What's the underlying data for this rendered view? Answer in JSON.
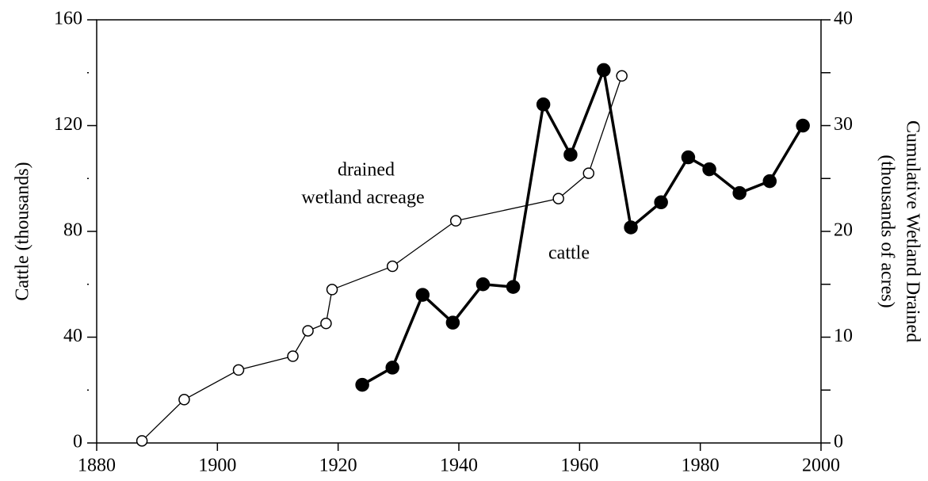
{
  "chart_data": {
    "type": "line",
    "ylabel": "Cattle (thousands)",
    "y2label": [
      "Cumulative Wetland Drained",
      "(thousands of acres)"
    ],
    "annotations": [
      "drained",
      "wetland acreage",
      "cattle"
    ],
    "xlim": [
      1880,
      2000
    ],
    "xticks": [
      1880,
      1900,
      1920,
      1940,
      1960,
      1980,
      2000
    ],
    "ylim": [
      0,
      160
    ],
    "yticks": [
      0,
      40,
      80,
      120,
      160
    ],
    "yminorticks": [
      20,
      60,
      100,
      140
    ],
    "y2lim": [
      0,
      40
    ],
    "y2ticks": [
      0,
      10,
      20,
      30,
      40
    ],
    "y2minorticks": [
      5,
      15,
      25,
      35
    ],
    "series": [
      {
        "name": "drained wetland acreage",
        "color": "#000000",
        "marker": "open",
        "axis": "y2",
        "x": [
          1887.5,
          1894.5,
          1903.5,
          1912.5,
          1915,
          1918,
          1919,
          1929,
          1939.5,
          1956.5,
          1961.5,
          1967
        ],
        "values": [
          0.2,
          4.1,
          6.9,
          8.2,
          10.6,
          11.3,
          14.5,
          16.7,
          21.0,
          23.1,
          25.5,
          34.7
        ]
      },
      {
        "name": "cattle",
        "color": "#000000",
        "marker": "filled",
        "axis": "y",
        "x": [
          1924,
          1929,
          1934,
          1939,
          1944,
          1949,
          1954,
          1958.5,
          1964,
          1968.5,
          1973.5,
          1978,
          1981.5,
          1986.5,
          1991.5,
          1997
        ],
        "values": [
          22,
          28.5,
          56,
          45.5,
          60,
          59,
          128,
          109,
          141,
          81.5,
          91,
          108,
          103.5,
          94.5,
          99,
          120
        ]
      }
    ]
  }
}
